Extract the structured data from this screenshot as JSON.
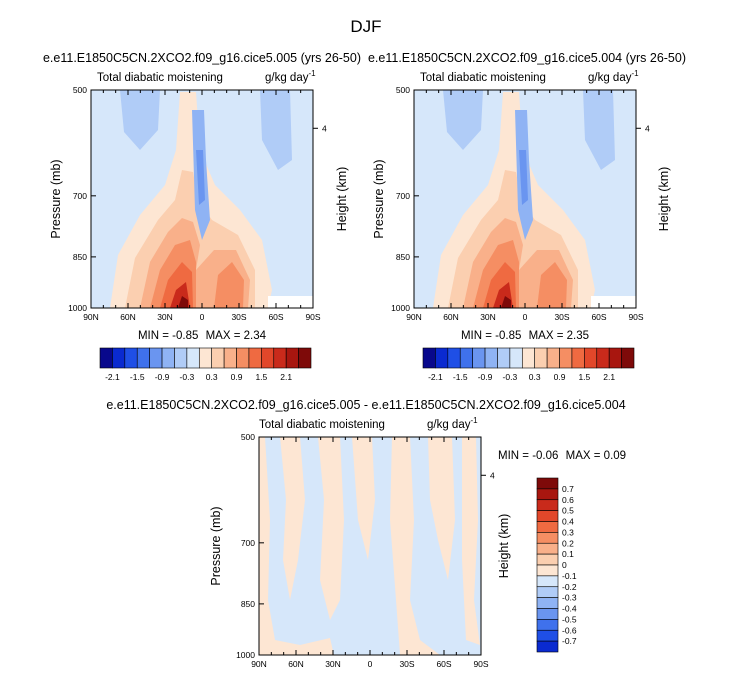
{
  "figure": {
    "title": "DJF"
  },
  "chart_data": [
    {
      "type": "heatmap",
      "id": "panel-a",
      "case": "e.e11.E1850C5CN.2XCO2.f09_g16.cice5.005 (yrs 26-50)",
      "title": "Total diabatic moistening",
      "units": "g/kg day",
      "units_exp": "-1",
      "xlabel": "",
      "ylabel": "Pressure (mb)",
      "y2label": "Height (km)",
      "x_ticks": [
        "90N",
        "60N",
        "30N",
        "0",
        "30S",
        "60S",
        "90S"
      ],
      "y_ticks": [
        "500",
        "700",
        "850",
        "1000"
      ],
      "y2_ticks": [
        "4"
      ],
      "ylim": [
        1000,
        500
      ],
      "min_label": "MIN =",
      "min": "-0.85",
      "max_label": "MAX =",
      "max": "2.34"
    },
    {
      "type": "heatmap",
      "id": "panel-b",
      "case": "e.e11.E1850C5CN.2XCO2.f09_g16.cice5.004 (yrs 26-50)",
      "title": "Total diabatic moistening",
      "units": "g/kg day",
      "units_exp": "-1",
      "xlabel": "",
      "ylabel": "Pressure (mb)",
      "y2label": "Height (km)",
      "x_ticks": [
        "90N",
        "60N",
        "30N",
        "0",
        "30S",
        "60S",
        "90S"
      ],
      "y_ticks": [
        "500",
        "700",
        "850",
        "1000"
      ],
      "y2_ticks": [
        "4"
      ],
      "ylim": [
        1000,
        500
      ],
      "min_label": "MIN =",
      "min": "-0.85",
      "max_label": "MAX =",
      "max": "2.35"
    },
    {
      "type": "heatmap",
      "id": "panel-diff",
      "case": "e.e11.E1850C5CN.2XCO2.f09_g16.cice5.005 - e.e11.E1850C5CN.2XCO2.f09_g16.cice5.004",
      "title": "Total diabatic moistening",
      "units": "g/kg day",
      "units_exp": "-1",
      "xlabel": "",
      "ylabel": "Pressure (mb)",
      "y2label": "Height (km)",
      "x_ticks": [
        "90N",
        "60N",
        "30N",
        "0",
        "30S",
        "60S",
        "90S"
      ],
      "y_ticks": [
        "500",
        "700",
        "850",
        "1000"
      ],
      "y2_ticks": [
        "4"
      ],
      "ylim": [
        1000,
        500
      ],
      "min_label": "MIN =",
      "min": "-0.06",
      "max_label": "MAX =",
      "max": "0.09"
    }
  ],
  "colorbar_main": {
    "labels": [
      "-2.1",
      "-1.5",
      "-0.9",
      "-0.3",
      "0.3",
      "0.9",
      "1.5",
      "2.1"
    ],
    "colors": [
      "#08088c",
      "#0a2ad0",
      "#1f4fe6",
      "#3f71ec",
      "#6a95f0",
      "#8fb3f4",
      "#b0ccf7",
      "#d6e7fa",
      "#fde6d3",
      "#fbcfb0",
      "#f9b08a",
      "#f58e63",
      "#ef6a41",
      "#e2472a",
      "#c92a1b",
      "#a8160f",
      "#7e0a09"
    ]
  },
  "colorbar_diff": {
    "labels": [
      "0.7",
      "0.6",
      "0.5",
      "0.4",
      "0.3",
      "0.2",
      "0.1",
      "0",
      "-0.1",
      "-0.2",
      "-0.3",
      "-0.4",
      "-0.5",
      "-0.6",
      "-0.7"
    ],
    "colors": [
      "#7e0a09",
      "#a8160f",
      "#c92a1b",
      "#e2472a",
      "#ef6a41",
      "#f58e63",
      "#f9b08a",
      "#fbcfb0",
      "#fde6d3",
      "#d6e7fa",
      "#b0ccf7",
      "#8fb3f4",
      "#6a95f0",
      "#3f71ec",
      "#1f4fe6",
      "#0a2ad0"
    ]
  }
}
